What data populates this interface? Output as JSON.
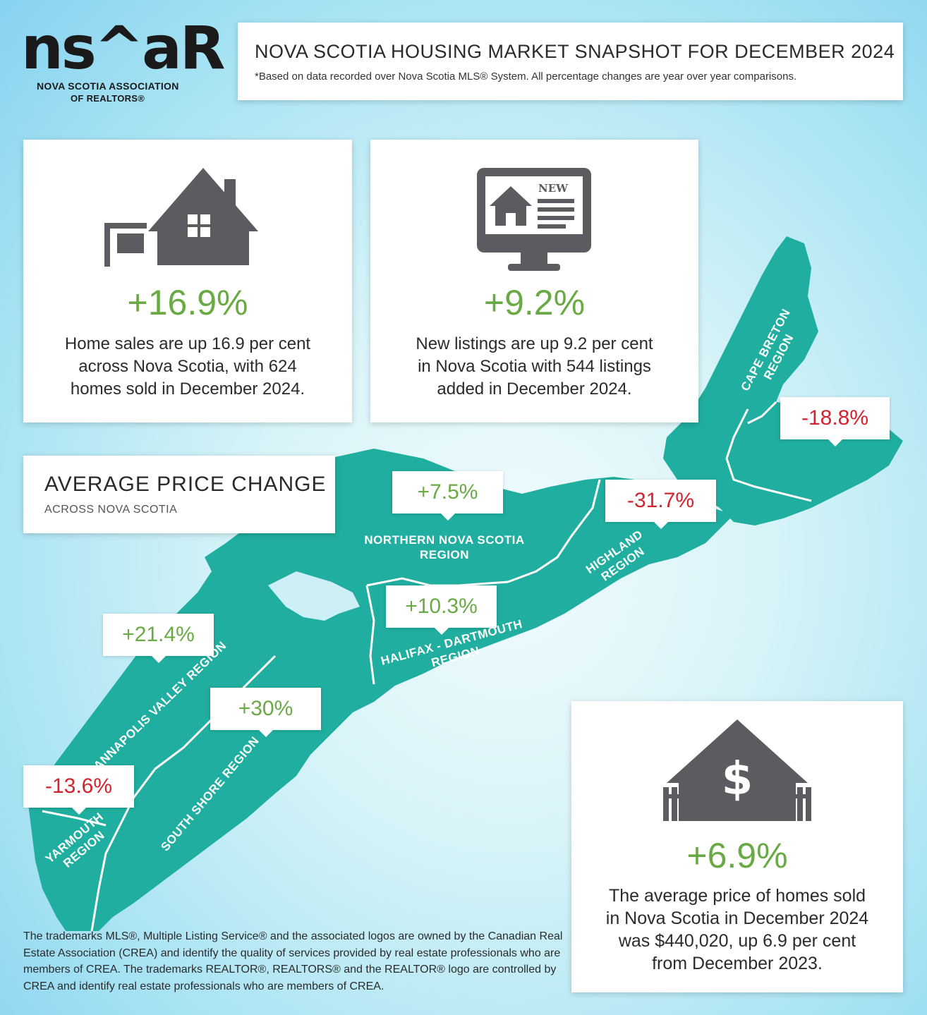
{
  "logo": {
    "mark": "ns^aR",
    "line1": "NOVA SCOTIA ASSOCIATION",
    "line2": "OF REALTORS®"
  },
  "header": {
    "title": "NOVA SCOTIA HOUSING MARKET SNAPSHOT FOR DECEMBER 2024",
    "note": "*Based on data recorded over Nova Scotia MLS® System. All percentage changes are year over year comparisons."
  },
  "sales": {
    "icon": "house-for-sale-icon",
    "percent": "+16.9%",
    "desc_lines": [
      "Home sales are up 16.9 per cent",
      "across Nova Scotia, with 624",
      "homes sold in December 2024."
    ]
  },
  "listings": {
    "icon": "new-listing-monitor-icon",
    "icon_text": "NEW",
    "percent": "+9.2%",
    "desc_lines": [
      "New listings are up 9.2 per cent",
      "in Nova Scotia with 544 listings",
      "added in December 2024."
    ]
  },
  "avg_price_change": {
    "title": "AVERAGE PRICE CHANGE",
    "subtitle": "ACROSS NOVA SCOTIA"
  },
  "regions": [
    {
      "key": "cape-breton",
      "lines": [
        "CAPE BRETON",
        "REGION"
      ],
      "change": "-18.8%",
      "direction": "down"
    },
    {
      "key": "highland",
      "lines": [
        "HIGHLAND",
        "REGION"
      ],
      "change": "-31.7%",
      "direction": "down"
    },
    {
      "key": "northern",
      "lines": [
        "NORTHERN NOVA SCOTIA",
        "REGION"
      ],
      "change": "+7.5%",
      "direction": "up"
    },
    {
      "key": "halifax",
      "lines": [
        "HALIFAX - DARTMOUTH",
        "REGION"
      ],
      "change": "+10.3%",
      "direction": "up"
    },
    {
      "key": "annapolis",
      "lines": [
        "ANNAPOLIS VALLEY REGION"
      ],
      "change": "+21.4%",
      "direction": "up"
    },
    {
      "key": "south-shore",
      "lines": [
        "SOUTH SHORE REGION"
      ],
      "change": "+30%",
      "direction": "up"
    },
    {
      "key": "yarmouth",
      "lines": [
        "YARMOUTH",
        "REGION"
      ],
      "change": "-13.6%",
      "direction": "down"
    }
  ],
  "avg_price": {
    "icon": "house-dollar-icon",
    "percent": "+6.9%",
    "desc_lines": [
      "The average price of homes sold",
      "in Nova Scotia in December 2024",
      "was $440,020, up 6.9 per cent",
      "from December 2023."
    ]
  },
  "footer": "The trademarks MLS®, Multiple Listing Service® and the associated logos are owned by the Canadian Real Estate Association (CREA) and identify the quality of services provided by real estate professionals who are members of CREA. The trademarks REALTOR®, REALTORS® and the REALTOR® logo are controlled by CREA and identify real estate professionals who are members of CREA.",
  "colors": {
    "map": "#1fae9f",
    "positive": "#6aaa45",
    "negative": "#d3232f",
    "icon": "#5c5c60"
  }
}
